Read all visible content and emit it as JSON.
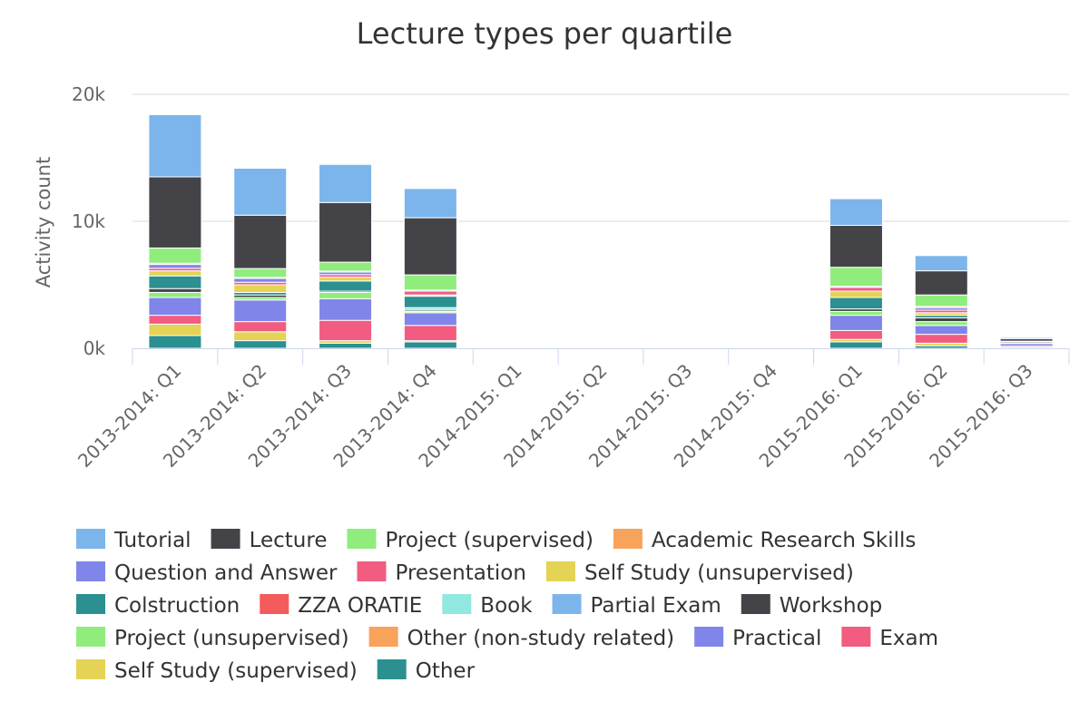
{
  "chart_data": {
    "type": "bar",
    "stacked": true,
    "title": "Lecture types per quartile",
    "ylabel": "Activity count",
    "xlabel": "",
    "ylim": [
      0,
      20000
    ],
    "y_ticks": [
      {
        "value": 0,
        "label": "0k"
      },
      {
        "value": 10000,
        "label": "10k"
      },
      {
        "value": 20000,
        "label": "20k"
      }
    ],
    "grid": true,
    "legend_position": "bottom",
    "categories": [
      "2013-2014: Q1",
      "2013-2014: Q2",
      "2013-2014: Q3",
      "2013-2014: Q4",
      "2014-2015: Q1",
      "2014-2015: Q2",
      "2014-2015: Q3",
      "2014-2015: Q4",
      "2015-2016: Q1",
      "2015-2016: Q2",
      "2015-2016: Q3"
    ],
    "series": [
      {
        "name": "Tutorial",
        "color": "#7cb5ec",
        "values": [
          4900,
          3700,
          3000,
          2300,
          0,
          0,
          0,
          0,
          2100,
          1200,
          100
        ]
      },
      {
        "name": "Lecture",
        "color": "#434348",
        "values": [
          5600,
          4200,
          4700,
          4500,
          0,
          0,
          0,
          0,
          3300,
          1900,
          200
        ]
      },
      {
        "name": "Project (supervised)",
        "color": "#90ed7d",
        "values": [
          1200,
          700,
          700,
          1200,
          0,
          0,
          0,
          0,
          1500,
          900,
          20
        ]
      },
      {
        "name": "Academic Research Skills",
        "color": "#f7a35c",
        "values": [
          100,
          80,
          80,
          0,
          0,
          0,
          0,
          0,
          0,
          100,
          0
        ]
      },
      {
        "name": "Question and Answer",
        "color": "#8085e9",
        "values": [
          300,
          300,
          200,
          80,
          0,
          0,
          0,
          0,
          80,
          200,
          10
        ]
      },
      {
        "name": "Presentation",
        "color": "#f15c80",
        "values": [
          200,
          200,
          200,
          300,
          0,
          0,
          0,
          0,
          300,
          200,
          10
        ]
      },
      {
        "name": "Self Study (unsupervised)",
        "color": "#e4d354",
        "values": [
          400,
          600,
          300,
          100,
          0,
          0,
          0,
          0,
          500,
          200,
          10
        ]
      },
      {
        "name": "Colstruction",
        "color": "#2b908f",
        "values": [
          1000,
          200,
          800,
          900,
          0,
          0,
          0,
          0,
          900,
          200,
          20
        ]
      },
      {
        "name": "ZZA ORATIE",
        "color": "#f45b5b",
        "values": [
          0,
          0,
          0,
          0,
          0,
          0,
          0,
          0,
          0,
          0,
          0
        ]
      },
      {
        "name": "Book",
        "color": "#91e8e1",
        "values": [
          0,
          0,
          0,
          200,
          0,
          0,
          0,
          0,
          0,
          0,
          0
        ]
      },
      {
        "name": "Partial Exam",
        "color": "#7cb5ec",
        "values": [
          0,
          0,
          0,
          0,
          0,
          0,
          0,
          0,
          0,
          0,
          0
        ]
      },
      {
        "name": "Workshop",
        "color": "#434348",
        "values": [
          300,
          200,
          100,
          100,
          0,
          0,
          0,
          0,
          200,
          300,
          100
        ]
      },
      {
        "name": "Project (unsupervised)",
        "color": "#90ed7d",
        "values": [
          400,
          200,
          500,
          100,
          0,
          0,
          0,
          0,
          300,
          300,
          20
        ]
      },
      {
        "name": "Other (non-study related)",
        "color": "#f7a35c",
        "values": [
          0,
          0,
          0,
          0,
          0,
          0,
          0,
          0,
          0,
          0,
          0
        ]
      },
      {
        "name": "Practical",
        "color": "#8085e9",
        "values": [
          1400,
          1700,
          1700,
          1000,
          0,
          0,
          0,
          0,
          1200,
          700,
          200
        ]
      },
      {
        "name": "Exam",
        "color": "#f15c80",
        "values": [
          700,
          800,
          1600,
          1200,
          0,
          0,
          0,
          0,
          700,
          700,
          100
        ]
      },
      {
        "name": "Self Study (supervised)",
        "color": "#e4d354",
        "values": [
          900,
          700,
          200,
          100,
          0,
          0,
          0,
          0,
          200,
          200,
          20
        ]
      },
      {
        "name": "Other",
        "color": "#2b908f",
        "values": [
          1000,
          600,
          400,
          500,
          0,
          0,
          0,
          0,
          500,
          200,
          50
        ]
      }
    ]
  }
}
